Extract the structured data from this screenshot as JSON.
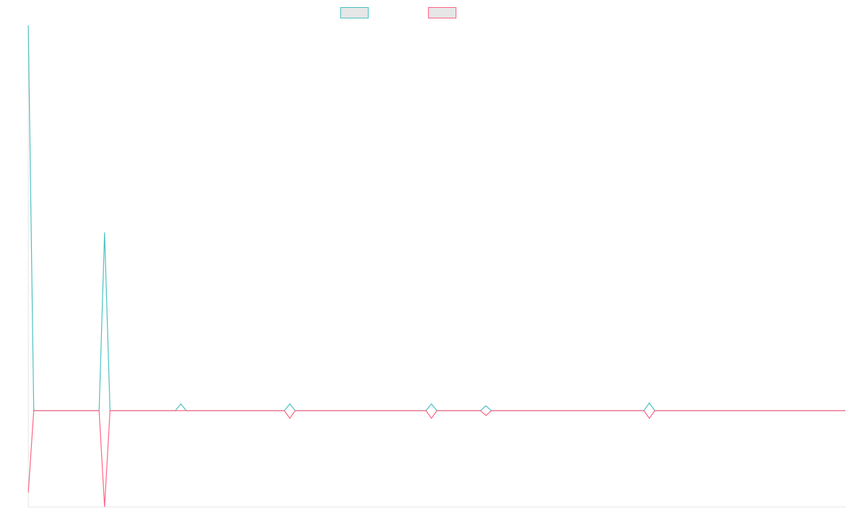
{
  "chart_data": {
    "type": "line",
    "title": "",
    "xlabel": "",
    "ylabel": "",
    "grid": false,
    "legend_position": "top-center",
    "x": [
      0,
      1,
      2,
      3,
      4,
      5,
      6,
      7,
      8,
      9,
      10,
      11,
      12,
      13,
      14,
      15,
      16,
      17,
      18,
      19,
      20,
      21,
      22,
      23,
      24,
      25,
      26,
      27,
      28,
      29,
      30,
      31,
      32,
      33,
      34,
      35,
      36,
      37,
      38,
      39,
      40,
      41,
      42,
      43,
      44,
      45,
      46,
      47,
      48,
      49,
      50,
      51,
      52,
      53,
      54,
      55,
      56,
      57,
      58,
      59,
      60,
      61,
      62,
      63,
      64,
      65,
      66,
      67,
      68,
      69,
      70,
      71,
      72,
      73,
      74,
      75,
      76,
      77,
      78,
      79,
      80,
      81,
      82,
      83,
      84,
      85,
      86,
      87,
      88,
      89,
      90,
      91,
      92,
      93,
      94,
      95,
      96,
      97,
      98,
      99,
      100,
      101,
      102,
      103,
      104,
      105,
      106,
      107,
      108,
      109,
      110,
      111,
      112,
      113,
      114,
      115,
      116,
      117,
      118,
      119,
      120,
      121,
      122,
      123,
      124,
      125,
      126,
      127,
      128,
      129,
      130,
      131,
      132,
      133,
      134,
      135,
      136,
      137,
      138,
      139,
      140,
      141,
      142,
      143,
      144,
      145,
      146,
      147,
      148,
      149,
      150
    ],
    "ylim": [
      -100,
      400
    ],
    "series": [
      {
        "color": "#4bc0c0",
        "values": [
          400,
          0,
          0,
          0,
          0,
          0,
          0,
          0,
          0,
          0,
          0,
          0,
          0,
          0,
          185,
          0,
          0,
          0,
          0,
          0,
          0,
          0,
          0,
          0,
          0,
          0,
          0,
          0,
          7,
          0,
          0,
          0,
          0,
          0,
          0,
          0,
          0,
          0,
          0,
          0,
          0,
          0,
          0,
          0,
          0,
          0,
          0,
          0,
          7,
          0,
          0,
          0,
          0,
          0,
          0,
          0,
          0,
          0,
          0,
          0,
          0,
          0,
          0,
          0,
          0,
          0,
          0,
          0,
          0,
          0,
          0,
          0,
          0,
          0,
          7,
          0,
          0,
          0,
          0,
          0,
          0,
          0,
          0,
          0,
          5,
          0,
          0,
          0,
          0,
          0,
          0,
          0,
          0,
          0,
          0,
          0,
          0,
          0,
          0,
          0,
          0,
          0,
          0,
          0,
          0,
          0,
          0,
          0,
          0,
          0,
          0,
          0,
          0,
          0,
          8,
          0,
          0,
          0,
          0,
          0,
          0,
          0,
          0,
          0,
          0,
          0,
          0,
          0,
          0,
          0,
          0,
          0,
          0,
          0,
          0,
          0,
          0,
          0,
          0,
          0,
          0,
          0,
          0,
          0,
          0,
          0,
          0,
          0,
          0,
          0,
          0
        ]
      },
      {
        "color": "#ff6384",
        "values": [
          -85,
          0,
          0,
          0,
          0,
          0,
          0,
          0,
          0,
          0,
          0,
          0,
          0,
          0,
          -100,
          0,
          0,
          0,
          0,
          0,
          0,
          0,
          0,
          0,
          0,
          0,
          0,
          0,
          0,
          0,
          0,
          0,
          0,
          0,
          0,
          0,
          0,
          0,
          0,
          0,
          0,
          0,
          0,
          0,
          0,
          0,
          0,
          0,
          -8,
          0,
          0,
          0,
          0,
          0,
          0,
          0,
          0,
          0,
          0,
          0,
          0,
          0,
          0,
          0,
          0,
          0,
          0,
          0,
          0,
          0,
          0,
          0,
          0,
          0,
          -8,
          0,
          0,
          0,
          0,
          0,
          0,
          0,
          0,
          0,
          -5,
          0,
          0,
          0,
          0,
          0,
          0,
          0,
          0,
          0,
          0,
          0,
          0,
          0,
          0,
          0,
          0,
          0,
          0,
          0,
          0,
          0,
          0,
          0,
          0,
          0,
          0,
          0,
          0,
          0,
          -8,
          0,
          0,
          0,
          0,
          0,
          0,
          0,
          0,
          0,
          0,
          0,
          0,
          0,
          0,
          0,
          0,
          0,
          0,
          0,
          0,
          0,
          0,
          0,
          0,
          0,
          0,
          0,
          0,
          0,
          0,
          0,
          0,
          0,
          0,
          0,
          0
        ]
      }
    ]
  }
}
